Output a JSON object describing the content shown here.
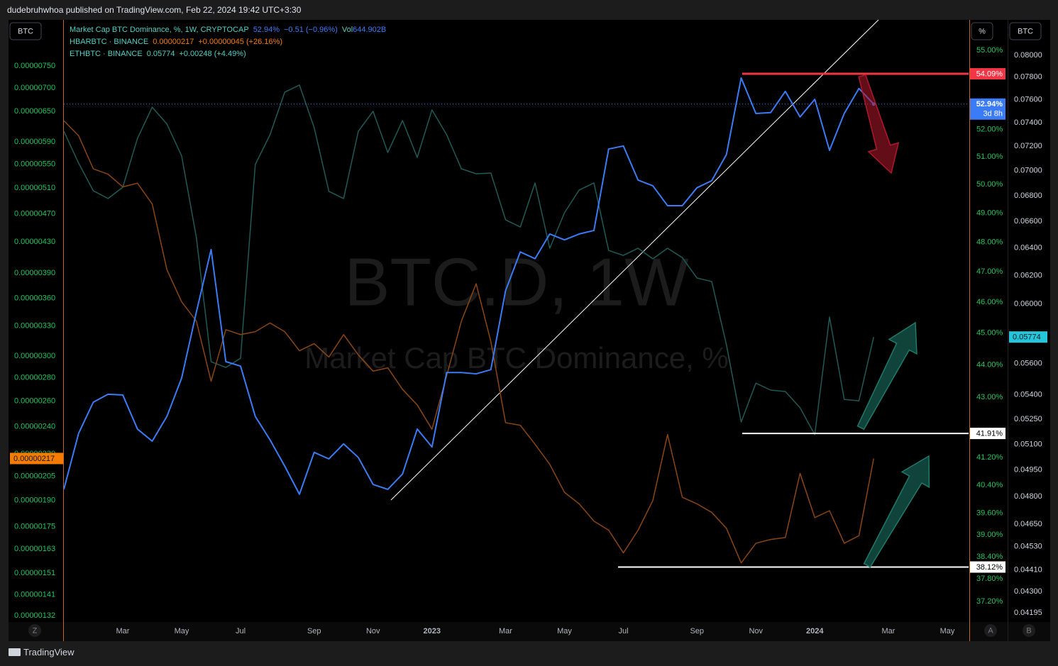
{
  "header": {
    "author_line": "dudebruhwhoa published on TradingView.com, Feb 22, 2024 19:42 UTC+3:30"
  },
  "toolbar": {
    "symbol_left": "BTC",
    "scale_percent": "%",
    "symbol_right": "BTC",
    "z_button": "Z",
    "a_button": "A",
    "b_button": "B"
  },
  "footer": {
    "brand": "TradingView"
  },
  "chart_data": {
    "type": "line",
    "log_scale": true,
    "grid": false,
    "watermark_title": "BTC.D, 1W",
    "watermark_subtitle": "Market Cap BTC Dominance, %",
    "categories": [
      null,
      null,
      null,
      null,
      "Mar",
      null,
      null,
      null,
      "May",
      null,
      null,
      null,
      "Jul",
      null,
      null,
      null,
      null,
      "Sep",
      null,
      null,
      null,
      "Nov",
      null,
      null,
      null,
      "2023",
      null,
      null,
      null,
      null,
      "Mar",
      null,
      null,
      null,
      "May",
      null,
      null,
      null,
      "Jul",
      null,
      null,
      null,
      null,
      "Sep",
      null,
      null,
      null,
      "Nov",
      null,
      null,
      null,
      "2024",
      null,
      null,
      null,
      null,
      "Mar",
      null,
      null,
      null,
      "May",
      null
    ],
    "series": [
      {
        "name": "Market Cap BTC Dominance, %, 1W, CRYPTOCAP",
        "color": "#3b7bf6",
        "axis": "y",
        "last_value_label": "52.94%",
        "change": "−0.51 (−0.96%)",
        "volume_label": "Vol",
        "volume": "644.902B",
        "countdown": "3d 8h",
        "values": [
          40.28,
          41.91,
          42.85,
          43.09,
          43.07,
          42.04,
          41.68,
          42.42,
          43.59,
          45.68,
          47.75,
          44.1,
          43.96,
          42.42,
          41.72,
          40.95,
          40.14,
          41.35,
          41.16,
          41.6,
          41.2,
          40.42,
          40.28,
          40.72,
          42.04,
          41.51,
          43.76,
          43.76,
          43.72,
          43.85,
          46.38,
          47.67,
          47.44,
          48.28,
          48.08,
          48.28,
          48.4,
          51.28,
          51.39,
          50.16,
          49.96,
          49.26,
          49.26,
          49.89,
          50.14,
          51.08,
          53.93,
          52.59,
          52.62,
          53.42,
          52.46,
          53.12,
          51.23,
          52.59,
          53.53,
          52.94,
          null,
          null,
          null,
          null,
          null,
          null
        ]
      },
      {
        "name": "HBARBTC · BINANCE",
        "color": "#8a4514",
        "axis": "y2",
        "last_value_label": "0.00000217",
        "change": "+0.00000045 (+26.16%)",
        "values": [
          6.31e-06,
          6.02e-06,
          5.42e-06,
          5.33e-06,
          5.12e-06,
          5.18e-06,
          4.85e-06,
          3.94e-06,
          3.56e-06,
          3.35e-06,
          2.77e-06,
          3.26e-06,
          3.21e-06,
          3.24e-06,
          3.33e-06,
          3.24e-06,
          3.05e-06,
          3.12e-06,
          2.99e-06,
          3.21e-06,
          3.01e-06,
          2.86e-06,
          2.89e-06,
          2.7e-06,
          2.57e-06,
          2.38e-06,
          2.82e-06,
          3.35e-06,
          3.77e-06,
          3.14e-06,
          2.43e-06,
          2.41e-06,
          2.27e-06,
          2.13e-06,
          1.95e-06,
          1.88e-06,
          1.78e-06,
          1.73e-06,
          1.61e-06,
          1.73e-06,
          1.9e-06,
          2.34e-06,
          1.92e-06,
          1.88e-06,
          1.83e-06,
          1.74e-06,
          1.56e-06,
          1.66e-06,
          1.68e-06,
          1.69e-06,
          2.07e-06,
          1.8e-06,
          1.84e-06,
          1.66e-06,
          1.7e-06,
          2.17e-06,
          null,
          null,
          null,
          null,
          null,
          null
        ]
      },
      {
        "name": "ETHBTC · BINANCE",
        "color": "#1f5a56",
        "axis": "y3",
        "last_value_label": "0.05774",
        "change": "+0.00248 (+4.49%)",
        "values": [
          0.07327,
          0.07062,
          0.06839,
          0.06778,
          0.06867,
          0.07267,
          0.07534,
          0.07388,
          0.0712,
          0.06478,
          0.05611,
          0.05574,
          0.05634,
          0.0705,
          0.07297,
          0.07666,
          0.07729,
          0.07358,
          0.06834,
          0.06778,
          0.07327,
          0.07498,
          0.07149,
          0.07418,
          0.07108,
          0.0751,
          0.07297,
          0.07015,
          0.06975,
          0.06981,
          0.06613,
          0.06558,
          0.06901,
          0.06399,
          0.06667,
          0.06845,
          0.06901,
          0.06383,
          0.06346,
          0.06399,
          0.06321,
          0.06399,
          0.0633,
          0.06182,
          0.06157,
          0.05722,
          0.05233,
          0.05474,
          0.0543,
          0.05421,
          0.0532,
          0.05157,
          0.05909,
          0.05372,
          0.05363,
          0.05774,
          null,
          null,
          null,
          null,
          null,
          null
        ]
      }
    ],
    "ylim": [
      36.68,
      56.2
    ],
    "yticks": [
      {
        "value": 55,
        "label": "55.00%"
      },
      {
        "value": 52,
        "label": "52.00%"
      },
      {
        "value": 51,
        "label": "51.00%"
      },
      {
        "value": 50,
        "label": "50.00%"
      },
      {
        "value": 49,
        "label": "49.00%"
      },
      {
        "value": 48,
        "label": "48.00%"
      },
      {
        "value": 47,
        "label": "47.00%"
      },
      {
        "value": 46,
        "label": "46.00%"
      },
      {
        "value": 45,
        "label": "45.00%"
      },
      {
        "value": 44,
        "label": "44.00%"
      },
      {
        "value": 43,
        "label": "43.00%"
      },
      {
        "value": 41.2,
        "label": "41.20%"
      },
      {
        "value": 40.4,
        "label": "40.40%"
      },
      {
        "value": 39.6,
        "label": "39.60%"
      },
      {
        "value": 39,
        "label": "39.00%"
      },
      {
        "value": 38.4,
        "label": "38.40%"
      },
      {
        "value": 37.8,
        "label": "37.80%"
      },
      {
        "value": 37.2,
        "label": "37.20%"
      }
    ],
    "y2lim": [
      1.297e-06,
      8.68e-06
    ],
    "y2ticks": [
      {
        "value": 7.5e-06,
        "label": "0.00000750"
      },
      {
        "value": 7e-06,
        "label": "0.00000700"
      },
      {
        "value": 6.5e-06,
        "label": "0.00000650"
      },
      {
        "value": 5.9e-06,
        "label": "0.00000590"
      },
      {
        "value": 5.5e-06,
        "label": "0.00000550"
      },
      {
        "value": 5.1e-06,
        "label": "0.00000510"
      },
      {
        "value": 4.7e-06,
        "label": "0.00000470"
      },
      {
        "value": 4.3e-06,
        "label": "0.00000430"
      },
      {
        "value": 3.9e-06,
        "label": "0.00000390"
      },
      {
        "value": 3.6e-06,
        "label": "0.00000360"
      },
      {
        "value": 3.3e-06,
        "label": "0.00000330"
      },
      {
        "value": 3e-06,
        "label": "0.00000300"
      },
      {
        "value": 2.8e-06,
        "label": "0.00000280"
      },
      {
        "value": 2.6e-06,
        "label": "0.00000260"
      },
      {
        "value": 2.4e-06,
        "label": "0.00000240"
      },
      {
        "value": 2.2e-06,
        "label": "0.00000220"
      },
      {
        "value": 2.05e-06,
        "label": "0.00000205"
      },
      {
        "value": 1.9e-06,
        "label": "0.00000190"
      },
      {
        "value": 1.75e-06,
        "label": "0.00000175"
      },
      {
        "value": 1.63e-06,
        "label": "0.00000163"
      },
      {
        "value": 1.51e-06,
        "label": "0.00000151"
      },
      {
        "value": 1.41e-06,
        "label": "0.00000141"
      },
      {
        "value": 1.32e-06,
        "label": "0.00000132"
      }
    ],
    "y3lim": [
      0.04155,
      0.08335
    ],
    "y3ticks": [
      {
        "value": 0.08,
        "label": "0.08000"
      },
      {
        "value": 0.078,
        "label": "0.07800"
      },
      {
        "value": 0.076,
        "label": "0.07600"
      },
      {
        "value": 0.074,
        "label": "0.07400"
      },
      {
        "value": 0.072,
        "label": "0.07200"
      },
      {
        "value": 0.07,
        "label": "0.07000"
      },
      {
        "value": 0.068,
        "label": "0.06800"
      },
      {
        "value": 0.066,
        "label": "0.06600"
      },
      {
        "value": 0.064,
        "label": "0.06400"
      },
      {
        "value": 0.062,
        "label": "0.06200"
      },
      {
        "value": 0.06,
        "label": "0.06000"
      },
      {
        "value": 0.056,
        "label": "0.05600"
      },
      {
        "value": 0.054,
        "label": "0.05400"
      },
      {
        "value": 0.0525,
        "label": "0.05250"
      },
      {
        "value": 0.051,
        "label": "0.05100"
      },
      {
        "value": 0.0495,
        "label": "0.04950"
      },
      {
        "value": 0.048,
        "label": "0.04800"
      },
      {
        "value": 0.0465,
        "label": "0.04650"
      },
      {
        "value": 0.0453,
        "label": "0.04530"
      },
      {
        "value": 0.0441,
        "label": "0.04410"
      },
      {
        "value": 0.043,
        "label": "0.04300"
      },
      {
        "value": 0.04195,
        "label": "0.04195"
      }
    ],
    "horizontal_lines": [
      {
        "value": 54.09,
        "label": "54.09%",
        "color": "#f23645"
      },
      {
        "value": 41.91,
        "label": "41.91%",
        "color": "#ffffff"
      },
      {
        "value": 38.12,
        "label": "38.12%",
        "color": "#ffffff"
      }
    ]
  }
}
